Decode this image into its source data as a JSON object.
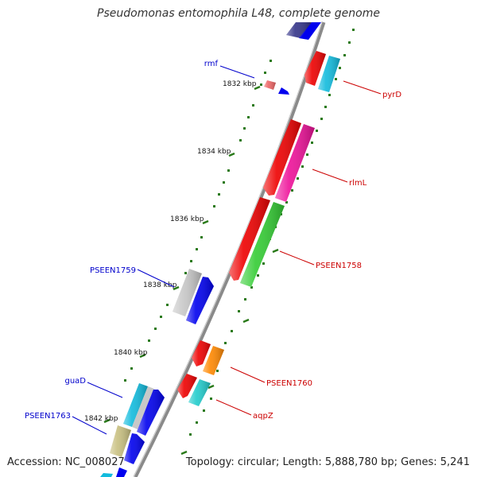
{
  "title": "Pseudomonas entomophila L48, complete genome",
  "footer": {
    "accession": "Accession: NC_008027",
    "summary": "Topology: circular; Length: 5,888,780 bp; Genes: 5,241"
  },
  "scale_labels": [
    "1832 kbp",
    "1834 kbp",
    "1836 kbp",
    "1838 kbp",
    "1840 kbp",
    "1842 kbp"
  ],
  "genes": [
    {
      "name": "rmf",
      "strand": "minus",
      "color": "#0000cc"
    },
    {
      "name": "pyrD",
      "strand": "plus",
      "color": "#cc0000"
    },
    {
      "name": "rlmL",
      "strand": "plus",
      "color": "#cc0000"
    },
    {
      "name": "PSEEN1758",
      "strand": "plus",
      "color": "#cc0000"
    },
    {
      "name": "PSEEN1759",
      "strand": "minus",
      "color": "#0000cc"
    },
    {
      "name": "PSEEN1760",
      "strand": "plus",
      "color": "#cc0000"
    },
    {
      "name": "aqpZ",
      "strand": "plus",
      "color": "#cc0000"
    },
    {
      "name": "guaD",
      "strand": "minus",
      "color": "#0000cc"
    },
    {
      "name": "PSEEN1763",
      "strand": "minus",
      "color": "#0000cc"
    }
  ],
  "colors": {
    "backbone": "#8a8a8a",
    "scale_tick": "#2a7a1a",
    "red": "#ee0000",
    "blue": "#0000ee",
    "green": "#33cc33",
    "magenta": "#ee1199",
    "cyan": "#11bbdd",
    "orange": "#ff8800",
    "gray": "#c8c8c8",
    "olive": "#c8c080",
    "navy": "#333388",
    "teal": "#22cccc",
    "pink": "#ee6666"
  }
}
